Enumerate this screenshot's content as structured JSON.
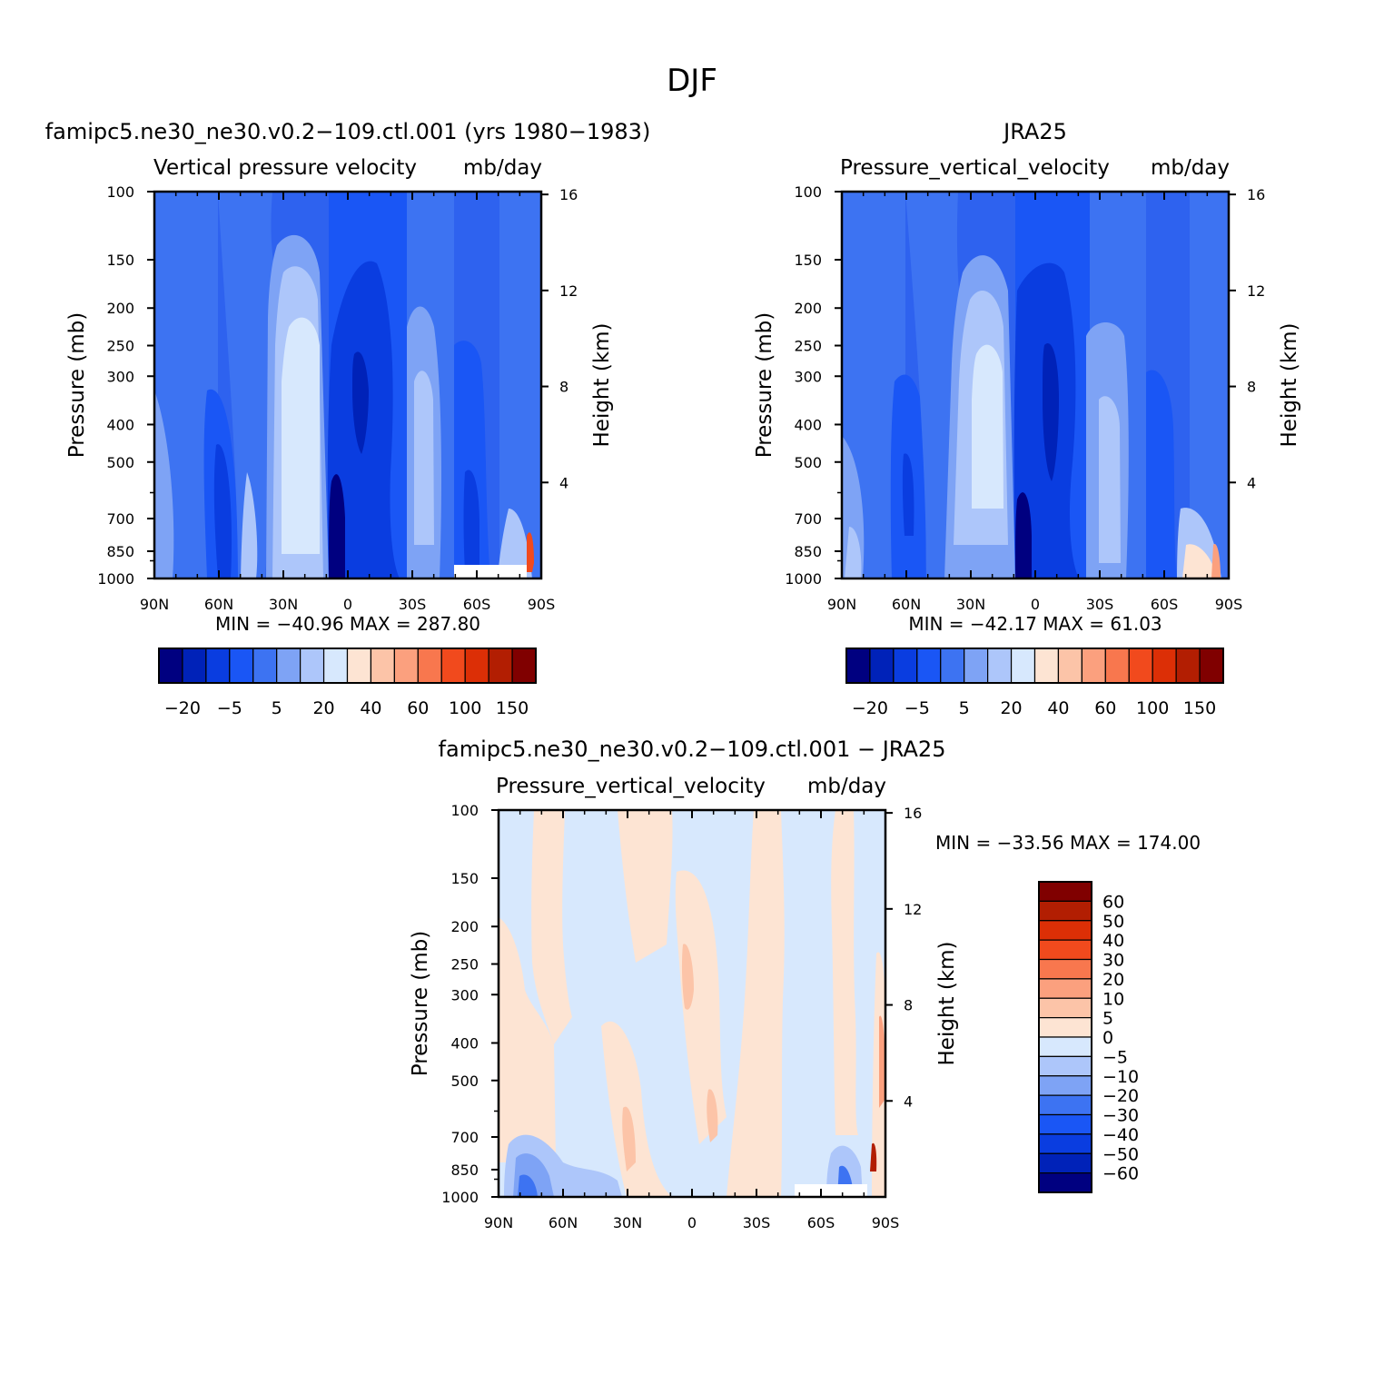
{
  "figure_title": "DJF",
  "colors": {
    "abs_levels": [
      "#000080",
      "#0022b8",
      "#0a3de0",
      "#1a56f5",
      "#3d73f2",
      "#7ea3f5",
      "#adc6fa",
      "#d7e8fd",
      "#fde4d3",
      "#fcc4a8",
      "#fba07e",
      "#f8774e",
      "#f14a1d",
      "#dc2f06",
      "#b21e02",
      "#800000"
    ],
    "diff_levels": [
      "#000080",
      "#0022b8",
      "#0a3de0",
      "#1a56f5",
      "#3d73f2",
      "#7ea3f5",
      "#adc6fa",
      "#d7e8fd",
      "#fde4d3",
      "#fcc4a8",
      "#fba07e",
      "#f8774e",
      "#f14a1d",
      "#dc2f06",
      "#b21e02",
      "#800000"
    ]
  },
  "panels": [
    {
      "id": "model",
      "title": "famipc5.ne30_ne30.v0.2−109.ctl.001 (yrs 1980−1983)",
      "subtitle_left": "Vertical pressure velocity",
      "subtitle_right": "mb/day",
      "ylabel": "Pressure (mb)",
      "y2label": "Height (km)",
      "minmax": "MIN = −40.96   MAX = 287.80",
      "colorbar_labels": [
        "−20",
        "−5",
        "5",
        "20",
        "40",
        "60",
        "100",
        "150"
      ]
    },
    {
      "id": "obs",
      "title": "JRA25",
      "subtitle_left": "Pressure_vertical_velocity",
      "subtitle_right": "mb/day",
      "ylabel": "Pressure (mb)",
      "y2label": "Height (km)",
      "minmax": "MIN = −42.17   MAX =  61.03",
      "colorbar_labels": [
        "−20",
        "−5",
        "5",
        "20",
        "40",
        "60",
        "100",
        "150"
      ]
    },
    {
      "id": "diff",
      "title": "famipc5.ne30_ne30.v0.2−109.ctl.001 − JRA25",
      "subtitle_left": "Pressure_vertical_velocity",
      "subtitle_right": "mb/day",
      "ylabel": "Pressure (mb)",
      "y2label": "Height (km)",
      "minmax": "MIN = −33.56   MAX = 174.00",
      "colorbar_labels": [
        "60",
        "50",
        "40",
        "30",
        "20",
        "10",
        "5",
        "0",
        "−5",
        "−10",
        "−20",
        "−30",
        "−40",
        "−50",
        "−60"
      ]
    }
  ],
  "chart_data": [
    {
      "type": "heatmap",
      "title": "famipc5.ne30_ne30.v0.2−109.ctl.001 (yrs 1980−1983)",
      "xlabel": "",
      "ylabel": "Pressure (mb)",
      "y2label": "Height (km)",
      "x_ticks": [
        "90N",
        "60N",
        "30N",
        "0",
        "30S",
        "60S",
        "90S"
      ],
      "y_ticks": [
        100,
        150,
        200,
        250,
        300,
        400,
        500,
        700,
        850,
        1000
      ],
      "y2_ticks": [
        4,
        8,
        12,
        16
      ],
      "y_scale": "log",
      "y_reversed": true,
      "xlim": [
        90,
        -90
      ],
      "ylim": [
        1000,
        100
      ],
      "units": "mb/day",
      "min": -40.96,
      "max": 287.8,
      "approx_column_values": [
        {
          "lat": 85,
          "value": -5
        },
        {
          "lat": 75,
          "value": -15
        },
        {
          "lat": 60,
          "value": -25
        },
        {
          "lat": 45,
          "value": -10
        },
        {
          "lat": 27,
          "value": 5
        },
        {
          "lat": 22,
          "value": 10
        },
        {
          "lat": 10,
          "value": -20
        },
        {
          "lat": 0,
          "value": -30
        },
        {
          "lat": -10,
          "value": -25
        },
        {
          "lat": -30,
          "value": 0
        },
        {
          "lat": -55,
          "value": -20
        },
        {
          "lat": -85,
          "value": 40
        }
      ]
    },
    {
      "type": "heatmap",
      "title": "JRA25",
      "xlabel": "",
      "ylabel": "Pressure (mb)",
      "y2label": "Height (km)",
      "x_ticks": [
        "90N",
        "60N",
        "30N",
        "0",
        "30S",
        "60S",
        "90S"
      ],
      "y_ticks": [
        100,
        150,
        200,
        250,
        300,
        400,
        500,
        700,
        850,
        1000
      ],
      "y2_ticks": [
        4,
        8,
        12,
        16
      ],
      "y_scale": "log",
      "y_reversed": true,
      "xlim": [
        90,
        -90
      ],
      "ylim": [
        1000,
        100
      ],
      "units": "mb/day",
      "min": -42.17,
      "max": 61.03,
      "approx_column_values": [
        {
          "lat": 85,
          "value": 0
        },
        {
          "lat": 60,
          "value": -25
        },
        {
          "lat": 45,
          "value": -10
        },
        {
          "lat": 25,
          "value": 10
        },
        {
          "lat": 5,
          "value": -25
        },
        {
          "lat": -10,
          "value": -30
        },
        {
          "lat": -30,
          "value": 0
        },
        {
          "lat": -55,
          "value": -20
        },
        {
          "lat": -85,
          "value": 20
        }
      ]
    },
    {
      "type": "heatmap",
      "title": "famipc5.ne30_ne30.v0.2−109.ctl.001 − JRA25",
      "xlabel": "",
      "ylabel": "Pressure (mb)",
      "y2label": "Height (km)",
      "x_ticks": [
        "90N",
        "60N",
        "30N",
        "0",
        "30S",
        "60S",
        "90S"
      ],
      "y_ticks": [
        100,
        150,
        200,
        250,
        300,
        400,
        500,
        700,
        850,
        1000
      ],
      "y2_ticks": [
        4,
        8,
        12,
        16
      ],
      "y_scale": "log",
      "y_reversed": true,
      "xlim": [
        90,
        -90
      ],
      "ylim": [
        1000,
        100
      ],
      "units": "mb/day",
      "min": -33.56,
      "max": 174.0,
      "approx_column_values": [
        {
          "lat": 85,
          "value": 2
        },
        {
          "lat": 75,
          "value": -10
        },
        {
          "lat": 45,
          "value": -2
        },
        {
          "lat": 30,
          "value": 3
        },
        {
          "lat": 10,
          "value": -2
        },
        {
          "lat": -15,
          "value": 3
        },
        {
          "lat": -40,
          "value": 2
        },
        {
          "lat": -65,
          "value": -2
        },
        {
          "lat": -85,
          "value": 60
        }
      ]
    }
  ]
}
